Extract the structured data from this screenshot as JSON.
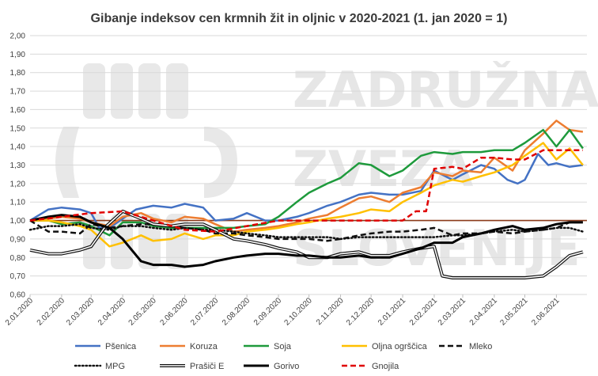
{
  "chart_data": {
    "type": "line",
    "title": "Gibanje indeksov cen krmnih žit in oljnic v 2020-2021 (1. jan 2020 = 1)",
    "xlabel": "",
    "ylabel": "",
    "ylim": [
      0.6,
      2.0
    ],
    "y_ticks": [
      "2,00",
      "1,90",
      "1,80",
      "1,70",
      "1,60",
      "1,50",
      "1,40",
      "1,30",
      "1,20",
      "1,10",
      "1,00",
      "0,90",
      "0,80",
      "0,70",
      "0,60"
    ],
    "x_ticks": [
      "2.01.2020",
      "2.02.2020",
      "2.03.2020",
      "2.04.2020",
      "2.05.2020",
      "2.06.2020",
      "2.07.2020",
      "2.08.2020",
      "2.09.2020",
      "2.10.2020",
      "2.11.2020",
      "2.12.2020",
      "2.01.2021",
      "2.02.2021",
      "2.03.2021",
      "2.04.2021",
      "2.05.2021",
      "2.06.2021"
    ],
    "x_range": [
      "2.01.2020",
      "2.07.2021"
    ],
    "grid": true,
    "legend_position": "bottom",
    "watermark": "ZADRUŽNA ZVEZA SLOVENIJE",
    "reference_line": {
      "value": 1.0,
      "color": "#8b3a1a"
    },
    "series": [
      {
        "name": "Pšenica",
        "color": "#4472c4",
        "style": "solid",
        "width": 2.5,
        "x": [
          "2020-01-02",
          "2020-01-20",
          "2020-02-02",
          "2020-02-20",
          "2020-03-02",
          "2020-03-10",
          "2020-03-20",
          "2020-04-02",
          "2020-04-15",
          "2020-05-02",
          "2020-05-20",
          "2020-06-02",
          "2020-06-20",
          "2020-07-02",
          "2020-07-20",
          "2020-08-02",
          "2020-08-20",
          "2020-09-02",
          "2020-09-20",
          "2020-10-02",
          "2020-10-20",
          "2020-11-02",
          "2020-11-20",
          "2020-12-02",
          "2020-12-20",
          "2021-01-02",
          "2021-01-20",
          "2021-02-02",
          "2021-02-20",
          "2021-03-02",
          "2021-03-20",
          "2021-04-02",
          "2021-04-15",
          "2021-04-25",
          "2021-05-02",
          "2021-05-15",
          "2021-05-25",
          "2021-06-02",
          "2021-06-15",
          "2021-06-28"
        ],
        "values": [
          1.0,
          1.06,
          1.07,
          1.06,
          1.04,
          0.96,
          0.96,
          1.01,
          1.06,
          1.08,
          1.07,
          1.09,
          1.07,
          1.0,
          1.01,
          1.04,
          1.0,
          1.0,
          1.02,
          1.04,
          1.08,
          1.1,
          1.14,
          1.15,
          1.14,
          1.14,
          1.16,
          1.27,
          1.22,
          1.25,
          1.3,
          1.28,
          1.22,
          1.2,
          1.22,
          1.36,
          1.3,
          1.31,
          1.29,
          1.3
        ]
      },
      {
        "name": "Koruza",
        "color": "#ed7d31",
        "style": "solid",
        "width": 2.5,
        "x": [
          "2020-01-02",
          "2020-01-20",
          "2020-02-02",
          "2020-02-20",
          "2020-03-02",
          "2020-03-20",
          "2020-04-02",
          "2020-04-20",
          "2020-05-02",
          "2020-05-20",
          "2020-06-02",
          "2020-06-20",
          "2020-07-02",
          "2020-07-20",
          "2020-08-02",
          "2020-08-20",
          "2020-09-02",
          "2020-09-20",
          "2020-10-02",
          "2020-10-20",
          "2020-11-02",
          "2020-11-20",
          "2020-12-02",
          "2020-12-20",
          "2021-01-02",
          "2021-01-20",
          "2021-02-02",
          "2021-02-20",
          "2021-03-02",
          "2021-03-20",
          "2021-04-02",
          "2021-04-20",
          "2021-05-02",
          "2021-05-20",
          "2021-06-02",
          "2021-06-15",
          "2021-06-28"
        ],
        "values": [
          1.0,
          1.01,
          1.02,
          1.01,
          0.99,
          0.97,
          1.02,
          1.04,
          1.01,
          0.99,
          1.02,
          1.01,
          0.98,
          0.94,
          0.95,
          0.96,
          0.97,
          0.99,
          1.01,
          1.03,
          1.07,
          1.12,
          1.13,
          1.1,
          1.15,
          1.18,
          1.26,
          1.24,
          1.27,
          1.26,
          1.34,
          1.27,
          1.38,
          1.47,
          1.54,
          1.49,
          1.48
        ]
      },
      {
        "name": "Soja",
        "color": "#1e9a3c",
        "style": "solid",
        "width": 2.5,
        "x": [
          "2020-01-02",
          "2020-01-20",
          "2020-02-02",
          "2020-02-20",
          "2020-03-02",
          "2020-03-20",
          "2020-04-02",
          "2020-04-20",
          "2020-05-02",
          "2020-05-20",
          "2020-06-02",
          "2020-06-20",
          "2020-07-02",
          "2020-07-20",
          "2020-08-02",
          "2020-08-20",
          "2020-09-02",
          "2020-09-20",
          "2020-10-02",
          "2020-10-20",
          "2020-11-02",
          "2020-11-20",
          "2020-12-02",
          "2020-12-20",
          "2021-01-02",
          "2021-01-20",
          "2021-02-02",
          "2021-02-20",
          "2021-03-02",
          "2021-03-20",
          "2021-04-02",
          "2021-04-20",
          "2021-05-02",
          "2021-05-20",
          "2021-06-02",
          "2021-06-15",
          "2021-06-28"
        ],
        "values": [
          1.0,
          1.0,
          0.98,
          0.99,
          0.97,
          0.92,
          0.99,
          0.99,
          0.97,
          0.96,
          0.96,
          0.96,
          0.96,
          0.96,
          0.97,
          0.98,
          1.02,
          1.1,
          1.15,
          1.2,
          1.23,
          1.31,
          1.3,
          1.24,
          1.27,
          1.35,
          1.37,
          1.36,
          1.37,
          1.37,
          1.38,
          1.38,
          1.42,
          1.49,
          1.4,
          1.49,
          1.39
        ]
      },
      {
        "name": "Oljna ogrščica",
        "color": "#ffc000",
        "style": "solid",
        "width": 2.5,
        "x": [
          "2020-01-02",
          "2020-01-20",
          "2020-02-02",
          "2020-02-20",
          "2020-03-02",
          "2020-03-20",
          "2020-04-02",
          "2020-04-20",
          "2020-05-02",
          "2020-05-20",
          "2020-06-02",
          "2020-06-20",
          "2020-07-02",
          "2020-07-20",
          "2020-08-02",
          "2020-08-20",
          "2020-09-02",
          "2020-09-20",
          "2020-10-02",
          "2020-10-20",
          "2020-11-02",
          "2020-11-20",
          "2020-12-02",
          "2020-12-20",
          "2021-01-02",
          "2021-01-20",
          "2021-02-02",
          "2021-02-20",
          "2021-03-02",
          "2021-03-20",
          "2021-04-02",
          "2021-04-20",
          "2021-05-02",
          "2021-05-20",
          "2021-06-02",
          "2021-06-15",
          "2021-06-28"
        ],
        "values": [
          1.0,
          1.0,
          0.99,
          0.97,
          0.95,
          0.86,
          0.88,
          0.92,
          0.89,
          0.9,
          0.93,
          0.9,
          0.92,
          0.92,
          0.94,
          0.95,
          0.96,
          0.98,
          0.99,
          1.01,
          1.02,
          1.04,
          1.06,
          1.05,
          1.1,
          1.15,
          1.19,
          1.22,
          1.21,
          1.24,
          1.26,
          1.3,
          1.35,
          1.42,
          1.33,
          1.39,
          1.3
        ]
      },
      {
        "name": "Mleko",
        "color": "#111111",
        "style": "dashed",
        "width": 2.5,
        "x": [
          "2020-01-02",
          "2020-01-20",
          "2020-02-02",
          "2020-02-20",
          "2020-03-02",
          "2020-03-20",
          "2020-04-02",
          "2020-04-20",
          "2020-05-02",
          "2020-05-20",
          "2020-06-02",
          "2020-06-20",
          "2020-07-02",
          "2020-07-20",
          "2020-08-02",
          "2020-08-20",
          "2020-09-02",
          "2020-09-20",
          "2020-10-02",
          "2020-10-20",
          "2020-11-02",
          "2020-11-20",
          "2020-12-02",
          "2020-12-20",
          "2021-01-02",
          "2021-01-20",
          "2021-02-02",
          "2021-02-20",
          "2021-03-02",
          "2021-03-20",
          "2021-04-02",
          "2021-04-20",
          "2021-05-02",
          "2021-05-20",
          "2021-06-02",
          "2021-06-15",
          "2021-06-28"
        ],
        "values": [
          1.0,
          0.94,
          0.94,
          0.93,
          0.98,
          0.96,
          0.97,
          0.98,
          0.98,
          0.97,
          0.96,
          0.95,
          0.93,
          0.93,
          0.92,
          0.91,
          0.9,
          0.9,
          0.9,
          0.89,
          0.9,
          0.92,
          0.93,
          0.94,
          0.94,
          0.95,
          0.96,
          0.92,
          0.93,
          0.93,
          0.94,
          0.93,
          0.94,
          0.95,
          0.96,
          0.99,
          0.99
        ]
      },
      {
        "name": "MPG",
        "color": "#111111",
        "style": "dotted",
        "width": 2.5,
        "x": [
          "2020-01-02",
          "2020-01-20",
          "2020-02-02",
          "2020-02-20",
          "2020-03-02",
          "2020-03-20",
          "2020-04-02",
          "2020-04-20",
          "2020-05-02",
          "2020-05-20",
          "2020-06-02",
          "2020-06-20",
          "2020-07-02",
          "2020-07-20",
          "2020-08-02",
          "2020-08-20",
          "2020-09-02",
          "2020-09-20",
          "2020-10-02",
          "2020-10-20",
          "2020-11-02",
          "2020-11-20",
          "2020-12-02",
          "2020-12-20",
          "2021-01-02",
          "2021-01-20",
          "2021-02-02",
          "2021-02-20",
          "2021-03-02",
          "2021-03-20",
          "2021-04-02",
          "2021-04-20",
          "2021-05-02",
          "2021-05-20",
          "2021-06-02",
          "2021-06-15",
          "2021-06-28"
        ],
        "values": [
          0.95,
          0.97,
          0.97,
          0.98,
          0.96,
          0.95,
          0.97,
          0.97,
          0.96,
          0.95,
          0.96,
          0.95,
          0.95,
          0.94,
          0.93,
          0.92,
          0.91,
          0.91,
          0.91,
          0.91,
          0.9,
          0.91,
          0.91,
          0.91,
          0.91,
          0.91,
          0.91,
          0.92,
          0.92,
          0.93,
          0.94,
          0.95,
          0.94,
          0.95,
          0.96,
          0.96,
          0.94
        ]
      },
      {
        "name": "Prašiči E",
        "color": "#111111",
        "style": "double",
        "width": 2.5,
        "x": [
          "2020-01-02",
          "2020-01-20",
          "2020-02-02",
          "2020-02-20",
          "2020-03-02",
          "2020-03-15",
          "2020-04-02",
          "2020-04-20",
          "2020-05-02",
          "2020-05-20",
          "2020-06-02",
          "2020-06-20",
          "2020-07-02",
          "2020-07-20",
          "2020-08-02",
          "2020-08-20",
          "2020-09-02",
          "2020-09-20",
          "2020-10-02",
          "2020-10-20",
          "2020-11-02",
          "2020-11-20",
          "2020-12-02",
          "2020-12-20",
          "2021-01-02",
          "2021-01-20",
          "2021-02-02",
          "2021-02-10",
          "2021-02-20",
          "2021-03-02",
          "2021-03-20",
          "2021-04-02",
          "2021-04-20",
          "2021-05-02",
          "2021-05-20",
          "2021-06-02",
          "2021-06-15",
          "2021-06-28"
        ],
        "values": [
          0.84,
          0.82,
          0.82,
          0.84,
          0.86,
          0.96,
          1.05,
          1.01,
          0.98,
          0.97,
          0.98,
          0.98,
          0.95,
          0.9,
          0.89,
          0.87,
          0.85,
          0.83,
          0.8,
          0.8,
          0.82,
          0.83,
          0.81,
          0.81,
          0.83,
          0.85,
          0.86,
          0.7,
          0.69,
          0.69,
          0.69,
          0.69,
          0.69,
          0.69,
          0.7,
          0.75,
          0.81,
          0.83
        ]
      },
      {
        "name": "Gorivo",
        "color": "#000000",
        "style": "solid",
        "width": 3,
        "x": [
          "2020-01-02",
          "2020-01-20",
          "2020-02-02",
          "2020-02-20",
          "2020-03-02",
          "2020-03-20",
          "2020-04-02",
          "2020-04-20",
          "2020-05-02",
          "2020-05-20",
          "2020-06-02",
          "2020-06-20",
          "2020-07-02",
          "2020-07-20",
          "2020-08-02",
          "2020-08-20",
          "2020-09-02",
          "2020-09-20",
          "2020-10-02",
          "2020-10-20",
          "2020-11-02",
          "2020-11-20",
          "2020-12-02",
          "2020-12-20",
          "2021-01-02",
          "2021-01-20",
          "2021-02-02",
          "2021-02-20",
          "2021-03-02",
          "2021-03-20",
          "2021-04-02",
          "2021-04-20",
          "2021-05-02",
          "2021-05-20",
          "2021-06-02",
          "2021-06-15",
          "2021-06-28"
        ],
        "values": [
          1.0,
          1.02,
          1.03,
          1.02,
          0.99,
          0.96,
          0.9,
          0.78,
          0.76,
          0.76,
          0.75,
          0.76,
          0.78,
          0.8,
          0.81,
          0.82,
          0.82,
          0.81,
          0.81,
          0.8,
          0.8,
          0.81,
          0.8,
          0.8,
          0.82,
          0.85,
          0.88,
          0.88,
          0.91,
          0.93,
          0.95,
          0.97,
          0.95,
          0.96,
          0.98,
          0.99,
          0.99
        ]
      },
      {
        "name": "Gnojila",
        "color": "#e00000",
        "style": "dashed",
        "width": 2.5,
        "x": [
          "2020-01-02",
          "2020-02-02",
          "2020-03-02",
          "2020-04-02",
          "2020-05-02",
          "2020-06-02",
          "2020-07-02",
          "2020-08-02",
          "2020-09-02",
          "2020-10-02",
          "2020-11-02",
          "2020-12-02",
          "2021-01-02",
          "2021-01-15",
          "2021-01-25",
          "2021-02-02",
          "2021-02-20",
          "2021-03-02",
          "2021-03-20",
          "2021-04-02",
          "2021-04-20",
          "2021-05-02",
          "2021-05-20",
          "2021-06-02",
          "2021-06-15",
          "2021-06-28"
        ],
        "values": [
          1.0,
          1.02,
          1.04,
          1.05,
          1.0,
          0.95,
          0.94,
          0.97,
          1.0,
          1.0,
          1.0,
          1.0,
          1.0,
          1.05,
          1.05,
          1.28,
          1.29,
          1.28,
          1.34,
          1.34,
          1.33,
          1.33,
          1.38,
          1.38,
          1.38,
          1.38
        ]
      }
    ]
  }
}
